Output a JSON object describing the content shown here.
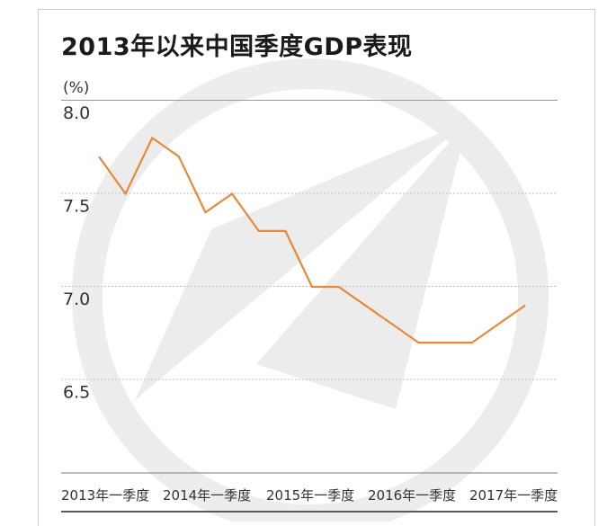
{
  "chart_data": {
    "type": "line",
    "title": "2013年以来中国季度GDP表现",
    "unit_label": "(%)",
    "ylim": [
      6.0,
      8.0
    ],
    "yticks": [
      {
        "value": 8.0,
        "label": "8.0"
      },
      {
        "value": 7.5,
        "label": "7.5"
      },
      {
        "value": 7.0,
        "label": "7.0"
      },
      {
        "value": 6.5,
        "label": "6.5"
      }
    ],
    "x_labels": [
      {
        "index": 0,
        "label": "2013年一季度"
      },
      {
        "index": 4,
        "label": "2014年一季度"
      },
      {
        "index": 8,
        "label": "2015年一季度"
      },
      {
        "index": 12,
        "label": "2016年一季度"
      },
      {
        "index": 16,
        "label": "2017年一季度"
      }
    ],
    "values": [
      7.7,
      7.5,
      7.8,
      7.7,
      7.4,
      7.5,
      7.3,
      7.3,
      7.0,
      7.0,
      6.9,
      6.8,
      6.7,
      6.7,
      6.7,
      6.8,
      6.9
    ],
    "line_color": "#e8893a",
    "grid": true
  }
}
